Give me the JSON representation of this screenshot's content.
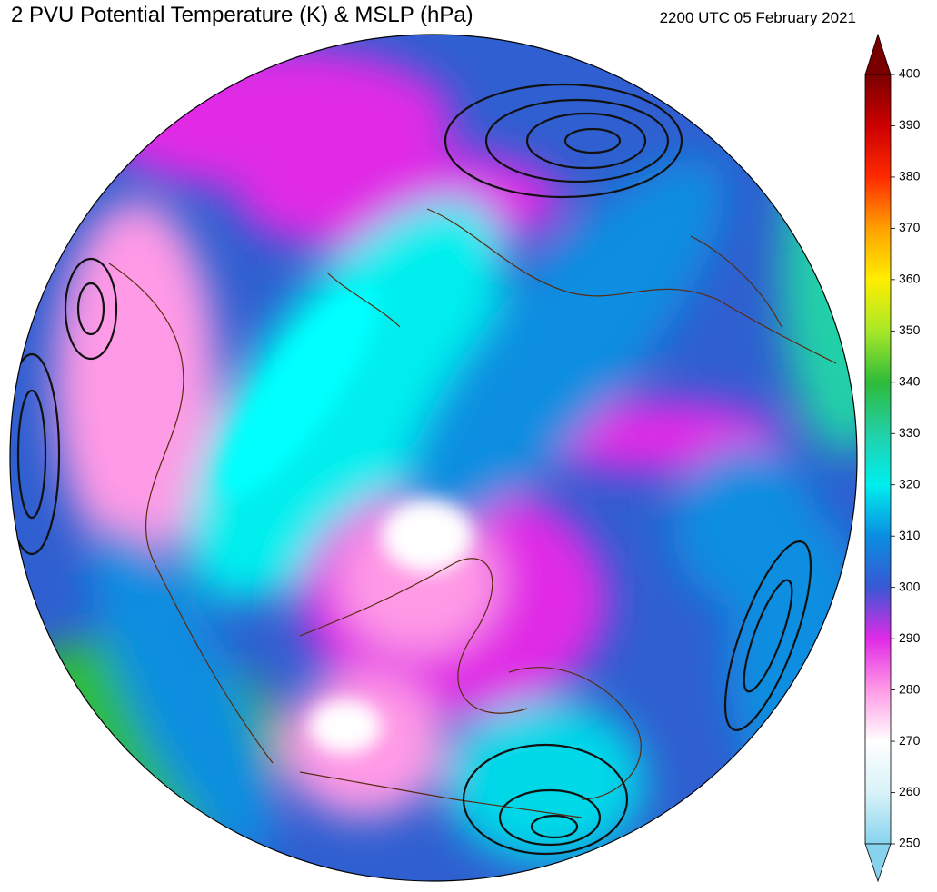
{
  "title": "2 PVU Potential Temperature (K) & MSLP (hPa)",
  "timestamp": "2200 UTC 05 February 2021",
  "colorbar": {
    "ticks": [
      250,
      260,
      270,
      280,
      290,
      300,
      310,
      320,
      330,
      340,
      350,
      360,
      370,
      380,
      390,
      400
    ],
    "colors": [
      "#87d3ee",
      "#d8f2f8",
      "#ffffff",
      "#ff9ae6",
      "#e02ae6",
      "#3858d4",
      "#0a8ee0",
      "#00eeee",
      "#22d0a8",
      "#2ebb3a",
      "#a8e828",
      "#ffee00",
      "#ffa000",
      "#ff2a00",
      "#cc0000",
      "#7a0000"
    ]
  }
}
